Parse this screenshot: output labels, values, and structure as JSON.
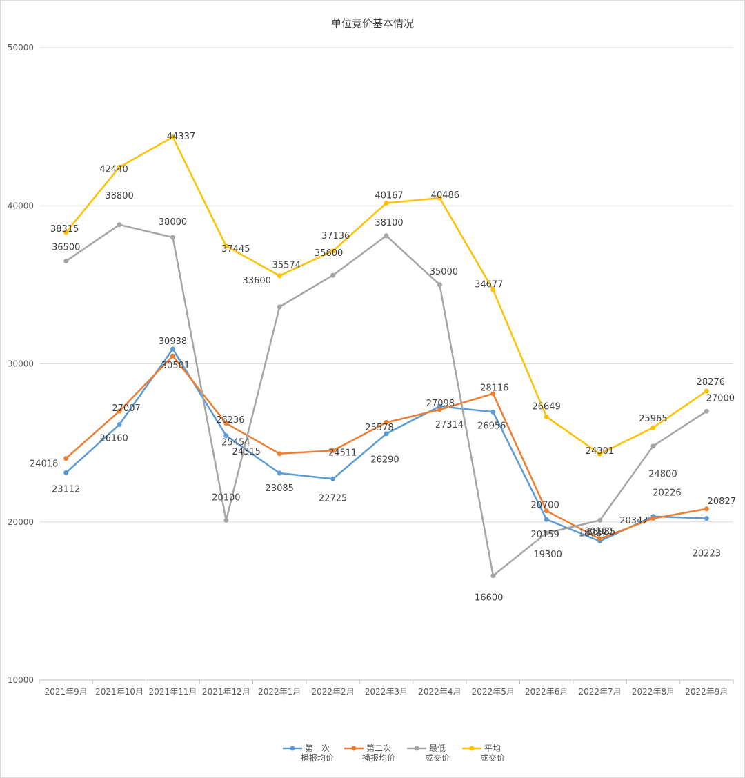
{
  "chart_data": {
    "type": "line",
    "title": "单位竞价基本情况",
    "xlabel": "",
    "ylabel": "",
    "ylim": [
      10000,
      50000
    ],
    "yticks": [
      10000,
      20000,
      30000,
      40000,
      50000
    ],
    "grid": true,
    "legend_position": "bottom",
    "categories": [
      "2021年9月",
      "2021年10月",
      "2021年11月",
      "2021年12月",
      "2022年1月",
      "2022年2月",
      "2022年3月",
      "2022年4月",
      "2022年5月",
      "2022年6月",
      "2022年7月",
      "2022年8月",
      "2022年9月"
    ],
    "series": [
      {
        "name": "第一次播报均价",
        "legend_lines": [
          "第一次",
          "播报均价"
        ],
        "color": "#5B9BD5",
        "values": [
          23112,
          26160,
          30938,
          25454,
          23085,
          22725,
          25578,
          27314,
          26956,
          20159,
          18787,
          20347,
          20223
        ]
      },
      {
        "name": "第二次播报均价",
        "legend_lines": [
          "第二次",
          "播报均价"
        ],
        "color": "#ED7D31",
        "values": [
          24018,
          27007,
          30501,
          26236,
          24315,
          24511,
          26290,
          27098,
          28116,
          20700,
          18935,
          20226,
          20827
        ]
      },
      {
        "name": "最低成交价",
        "legend_lines": [
          "最低",
          "成交价"
        ],
        "color": "#A5A5A5",
        "values": [
          36500,
          38800,
          38000,
          20100,
          33600,
          35600,
          38100,
          35000,
          16600,
          19300,
          20100,
          24800,
          27000
        ]
      },
      {
        "name": "平均成交价",
        "legend_lines": [
          "平均",
          "成交价"
        ],
        "color": "#FFC000",
        "values": [
          38315,
          42440,
          44337,
          37445,
          35574,
          37136,
          40167,
          40486,
          34677,
          26649,
          24301,
          25965,
          28276
        ]
      }
    ]
  }
}
